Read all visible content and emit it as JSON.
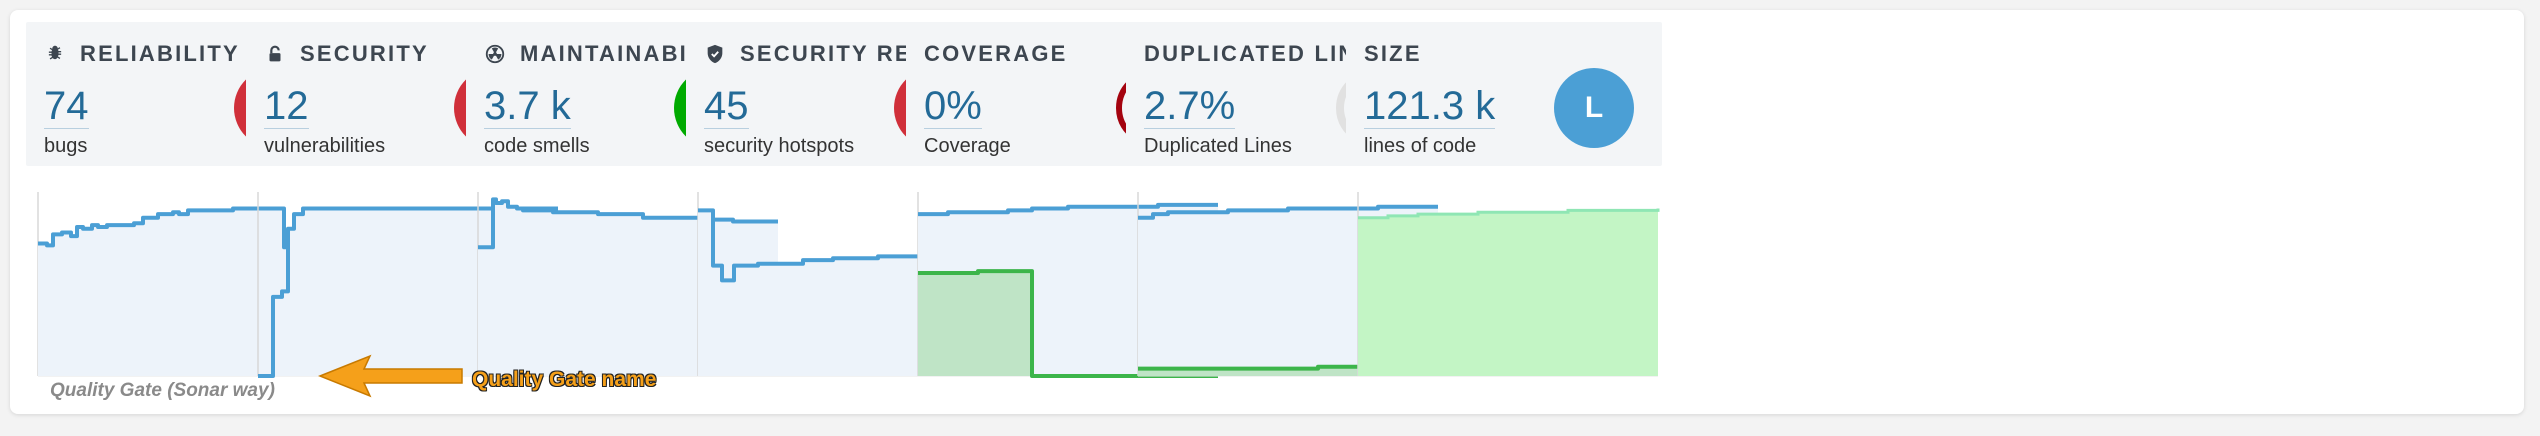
{
  "colors": {
    "rating_e": "#d02f3a",
    "rating_a": "#00aa00",
    "rating_l": "#4b9fd5",
    "line_blue": "#4b9fd5",
    "line_green": "#3cb54a",
    "coverage_ring": "#a4030f",
    "annotation": "#f5a01a"
  },
  "cards": [
    {
      "title": "Reliability",
      "icon": "bug-icon",
      "value": "74",
      "sub": "bugs",
      "badge": "E"
    },
    {
      "title": "Security",
      "icon": "lock-icon",
      "value": "12",
      "sub": "vulnerabilities",
      "badge": "E"
    },
    {
      "title": "Maintainability",
      "icon": "radiation-icon",
      "value": "3.7 k",
      "sub": "code smells",
      "badge": "A"
    },
    {
      "title": "Security Review",
      "icon": "shield-icon",
      "value": "45",
      "sub": "security hotspots",
      "badge": "E"
    },
    {
      "title": "Coverage",
      "icon": "",
      "value": "0%",
      "sub": "Coverage",
      "coverage_fraction": 0.0
    },
    {
      "title": "Duplicated Lines",
      "icon": "",
      "value": "2.7%",
      "sub": "Duplicated Lines",
      "duplication_fraction": 0.027
    },
    {
      "title": "Size",
      "icon": "",
      "value": "121.3 k",
      "sub": "lines of code",
      "badge": "L"
    }
  ],
  "chart_data": [
    {
      "type": "line",
      "metric": "bugs",
      "x": [
        0,
        0.03,
        0.05,
        0.08,
        0.11,
        0.13,
        0.15,
        0.18,
        0.2,
        0.23,
        0.26,
        0.3,
        0.32,
        0.35,
        0.4,
        0.45,
        0.47,
        0.5,
        0.53,
        0.6,
        0.65,
        0.7,
        0.75,
        0.8,
        0.81,
        0.82,
        0.84,
        0.86,
        0.9,
        0.95,
        1.0
      ],
      "series": [
        {
          "values": [
            0.72,
            0.71,
            0.77,
            0.78,
            0.76,
            0.81,
            0.8,
            0.82,
            0.81,
            0.82,
            0.82,
            0.82,
            0.83,
            0.86,
            0.88,
            0.89,
            0.88,
            0.9,
            0.9,
            0.9,
            0.91,
            0.91,
            0.91,
            0.91,
            0.91,
            0.7,
            0.64,
            0.7,
            0.71,
            0.71,
            0.71
          ]
        }
      ]
    },
    {
      "type": "line",
      "metric": "vulnerabilities",
      "x": [
        0,
        0.04,
        0.05,
        0.07,
        0.08,
        0.1,
        0.12,
        0.15,
        0.2,
        0.3,
        0.5,
        0.7,
        1.0
      ],
      "series": [
        {
          "values": [
            0.0,
            0.0,
            0.43,
            0.43,
            0.46,
            0.8,
            0.88,
            0.91,
            0.91,
            0.91,
            0.91,
            0.91,
            0.91
          ]
        }
      ]
    },
    {
      "type": "line",
      "metric": "code_smells",
      "x": [
        0,
        0.03,
        0.05,
        0.06,
        0.08,
        0.1,
        0.13,
        0.15,
        0.2,
        0.25,
        0.3,
        0.35,
        0.4,
        0.45,
        0.5,
        0.55,
        0.6,
        0.65,
        0.7,
        0.75,
        0.8,
        0.85,
        1.0
      ],
      "series": [
        {
          "values": [
            0.7,
            0.7,
            0.96,
            0.94,
            0.95,
            0.92,
            0.91,
            0.9,
            0.9,
            0.89,
            0.89,
            0.89,
            0.88,
            0.88,
            0.88,
            0.86,
            0.86,
            0.86,
            0.86,
            0.85,
            0.85,
            0.84,
            0.84
          ]
        }
      ]
    },
    {
      "type": "line",
      "metric": "security_hotspots",
      "x": [
        0,
        0.04,
        0.05,
        0.08,
        0.1,
        0.12,
        0.15,
        0.2,
        0.25,
        0.3,
        0.35,
        0.45,
        0.5,
        0.6,
        1.0
      ],
      "series": [
        {
          "values": [
            0.9,
            0.9,
            0.6,
            0.52,
            0.52,
            0.6,
            0.6,
            0.61,
            0.61,
            0.61,
            0.63,
            0.64,
            0.64,
            0.65,
            0.65
          ]
        }
      ]
    },
    {
      "type": "area",
      "metric": "coverage",
      "x": [
        0,
        0.1,
        0.2,
        0.3,
        0.37,
        0.38,
        0.4,
        0.5,
        0.6,
        0.7,
        0.8,
        1.0
      ],
      "series": [
        {
          "name": "lines_to_cover",
          "values": [
            0.88,
            0.89,
            0.89,
            0.9,
            0.9,
            0.91,
            0.91,
            0.92,
            0.92,
            0.92,
            0.93,
            0.93
          ]
        },
        {
          "name": "uncovered_lines",
          "values": [
            0.56,
            0.56,
            0.57,
            0.57,
            0.57,
            0.0,
            0.0,
            0.0,
            0.0,
            0.0,
            0.0,
            0.0
          ]
        }
      ]
    },
    {
      "type": "area",
      "metric": "duplicated_lines",
      "x": [
        0,
        0.05,
        0.1,
        0.2,
        0.3,
        0.4,
        0.5,
        0.6,
        0.7,
        0.8,
        0.9,
        1.0
      ],
      "series": [
        {
          "name": "lines",
          "values": [
            0.86,
            0.88,
            0.89,
            0.89,
            0.9,
            0.9,
            0.91,
            0.91,
            0.91,
            0.92,
            0.92,
            0.92
          ]
        },
        {
          "name": "duplicated_lines",
          "values": [
            0.04,
            0.04,
            0.04,
            0.04,
            0.04,
            0.04,
            0.04,
            0.05,
            0.05,
            0.05,
            0.05,
            0.05
          ]
        }
      ]
    },
    {
      "type": "area",
      "metric": "ncloc",
      "x": [
        0,
        0.1,
        0.2,
        0.3,
        0.4,
        0.5,
        0.6,
        0.7,
        0.8,
        0.9,
        1.0
      ],
      "series": [
        {
          "values": [
            0.86,
            0.87,
            0.88,
            0.88,
            0.89,
            0.89,
            0.89,
            0.9,
            0.9,
            0.9,
            0.91
          ]
        }
      ]
    }
  ],
  "quality_gate": {
    "name": "Quality Gate (Sonar way)"
  },
  "annotation": {
    "label": "Quality Gate name"
  }
}
